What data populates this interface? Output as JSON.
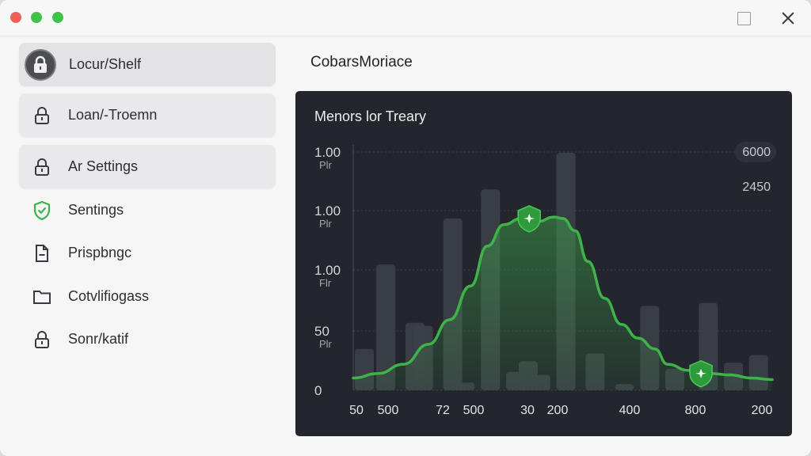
{
  "window": {
    "icons": [
      "close-traffic-light",
      "minimize-traffic-light",
      "zoom-traffic-light",
      "maximize-icon",
      "close-icon"
    ]
  },
  "sidebar": {
    "items": [
      {
        "label": "Locur/Shelf",
        "icon": "lock-icon"
      },
      {
        "label": "Loan/-Troemn",
        "icon": "lock-icon"
      },
      {
        "label": "Ar Settings",
        "icon": "lock-icon"
      },
      {
        "label": "Sentings",
        "icon": "shield-check-icon"
      },
      {
        "label": "Prispbngc",
        "icon": "document-icon"
      },
      {
        "label": "Cotvlifiogass",
        "icon": "folder-icon"
      },
      {
        "label": "Sonr/katif",
        "icon": "lock-icon"
      }
    ]
  },
  "main": {
    "title": "CobarsMoriace"
  },
  "colors": {
    "accent_green": "#3fb24a",
    "panel_bg": "#23262d",
    "bar": "#3b3f47"
  },
  "chart_data": {
    "type": "line",
    "title": "Menors lor Treary",
    "y_ticks": [
      {
        "label": "1.00",
        "sub": "Plr"
      },
      {
        "label": "1.00",
        "sub": "Plr"
      },
      {
        "label": "1.00",
        "sub": "Flr"
      },
      {
        "label": "50",
        "sub": "Plr"
      },
      {
        "label": "0",
        "sub": ""
      }
    ],
    "x_ticks": [
      "50",
      "500",
      "72",
      "500",
      "30",
      "200",
      "400",
      "800",
      "200"
    ],
    "annotations": [
      "6000",
      "2450"
    ],
    "ylim": [
      0,
      160
    ],
    "bars": [
      {
        "x": 0.0,
        "v": 27
      },
      {
        "x": 0.07,
        "v": 82
      },
      {
        "x": 0.14,
        "v": 44
      },
      {
        "x": 0.16,
        "v": 42
      },
      {
        "x": 0.23,
        "v": 112
      },
      {
        "x": 0.26,
        "v": 5
      },
      {
        "x": 0.32,
        "v": 131
      },
      {
        "x": 0.38,
        "v": 12
      },
      {
        "x": 0.41,
        "v": 19
      },
      {
        "x": 0.44,
        "v": 10
      },
      {
        "x": 0.5,
        "v": 162
      },
      {
        "x": 0.57,
        "v": 24
      },
      {
        "x": 0.64,
        "v": 4
      },
      {
        "x": 0.7,
        "v": 55
      },
      {
        "x": 0.76,
        "v": 14
      },
      {
        "x": 0.84,
        "v": 57
      },
      {
        "x": 0.9,
        "v": 18
      },
      {
        "x": 0.96,
        "v": 23
      }
    ],
    "series": [
      {
        "color": "#3fb24a",
        "points": [
          [
            0.0,
            8
          ],
          [
            0.06,
            11
          ],
          [
            0.12,
            17
          ],
          [
            0.18,
            30
          ],
          [
            0.23,
            46
          ],
          [
            0.28,
            68
          ],
          [
            0.32,
            94
          ],
          [
            0.36,
            108
          ],
          [
            0.4,
            112
          ],
          [
            0.44,
            110
          ],
          [
            0.48,
            113
          ],
          [
            0.5,
            112
          ],
          [
            0.53,
            104
          ],
          [
            0.56,
            84
          ],
          [
            0.6,
            60
          ],
          [
            0.64,
            43
          ],
          [
            0.68,
            34
          ],
          [
            0.72,
            27
          ],
          [
            0.75,
            17
          ],
          [
            0.8,
            13
          ],
          [
            0.85,
            11
          ],
          [
            0.9,
            10
          ],
          [
            0.95,
            8
          ],
          [
            1.0,
            7
          ]
        ]
      }
    ],
    "markers": [
      {
        "x": 0.42,
        "v": 112
      },
      {
        "x": 0.83,
        "v": 11
      }
    ]
  }
}
